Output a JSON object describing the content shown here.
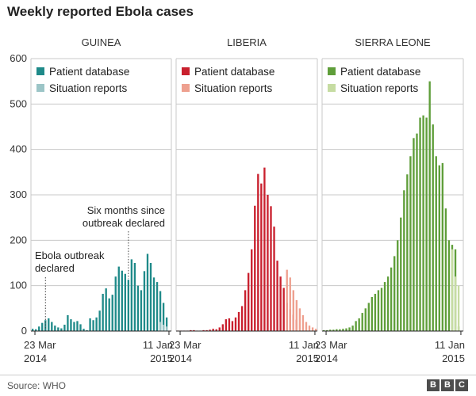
{
  "title": "Weekly reported Ebola cases",
  "source": "Source: WHO",
  "logo": [
    "B",
    "B",
    "C"
  ],
  "colors": {
    "guinea_db": "#1f8a89",
    "guinea_sr": "#9cc5c7",
    "liberia_db": "#c9202e",
    "liberia_sr": "#eea08f",
    "sierra_db": "#5f9e3a",
    "sierra_sr": "#c6dca2",
    "grid": "#c8c8c8",
    "axis": "#222222"
  },
  "chart_data": [
    {
      "type": "bar",
      "title": "GUINEA",
      "y_ticks": [
        0,
        100,
        200,
        300,
        400,
        500,
        600
      ],
      "ylim": [
        0,
        600
      ],
      "x_tick_labels": [
        {
          "week": 1,
          "label": "23 Mar",
          "sub": "2014"
        },
        {
          "week": 43,
          "label": "11 Jan",
          "sub": "2015"
        }
      ],
      "legend": [
        {
          "name": "Patient database",
          "color": "#1f8a89"
        },
        {
          "name": "Situation reports",
          "color": "#9cc5c7"
        }
      ],
      "annotations": [
        {
          "week": 4,
          "value": 100,
          "lines": [
            "Ebola outbreak",
            "declared"
          ]
        },
        {
          "week": 30,
          "value": 240,
          "lines": [
            "Six months since",
            "outbreak declared"
          ]
        }
      ],
      "series": [
        {
          "name": "Patient database",
          "start_week": 0,
          "values": [
            5,
            4,
            10,
            18,
            24,
            28,
            20,
            12,
            8,
            6,
            14,
            35,
            26,
            20,
            22,
            15,
            5,
            2,
            28,
            24,
            30,
            45,
            82,
            94,
            72,
            80,
            120,
            142,
            133,
            126,
            113,
            158,
            150,
            100,
            90,
            132,
            170,
            150,
            118,
            108,
            88,
            62,
            30
          ]
        },
        {
          "name": "Situation reports",
          "start_week": 40,
          "values": [
            20,
            14,
            10
          ]
        }
      ]
    },
    {
      "type": "bar",
      "title": "LIBERIA",
      "ylim": [
        0,
        600
      ],
      "x_tick_labels": [
        {
          "week": 1,
          "label": "23 Mar",
          "sub": "2014"
        },
        {
          "week": 43,
          "label": "11 Jan",
          "sub": "2015"
        }
      ],
      "legend": [
        {
          "name": "Patient database",
          "color": "#c9202e"
        },
        {
          "name": "Situation reports",
          "color": "#eea08f"
        }
      ],
      "series": [
        {
          "name": "Patient database",
          "start_week": 0,
          "values": [
            1,
            1,
            1,
            1,
            2,
            2,
            1,
            1,
            2,
            2,
            3,
            5,
            4,
            8,
            15,
            26,
            28,
            22,
            30,
            42,
            55,
            90,
            128,
            180,
            276,
            346,
            325,
            360,
            300,
            275,
            230,
            155,
            120,
            95,
            62,
            48,
            36,
            25
          ]
        },
        {
          "name": "Situation reports",
          "start_week": 34,
          "values": [
            135,
            118,
            90,
            68,
            50,
            35,
            20,
            12,
            8,
            5
          ]
        }
      ]
    },
    {
      "type": "bar",
      "title": "SIERRA LEONE",
      "ylim": [
        0,
        600
      ],
      "x_tick_labels": [
        {
          "week": 1,
          "label": "23 Mar",
          "sub": "2014"
        },
        {
          "week": 43,
          "label": "11 Jan",
          "sub": "2015"
        }
      ],
      "legend": [
        {
          "name": "Patient database",
          "color": "#5f9e3a"
        },
        {
          "name": "Situation reports",
          "color": "#c6dca2"
        }
      ],
      "series": [
        {
          "name": "Patient database",
          "start_week": 0,
          "values": [
            2,
            2,
            3,
            3,
            4,
            4,
            5,
            6,
            8,
            12,
            22,
            28,
            40,
            50,
            62,
            75,
            82,
            90,
            95,
            108,
            120,
            140,
            165,
            200,
            250,
            310,
            345,
            385,
            425,
            435,
            470,
            475,
            470,
            550,
            455,
            385,
            365,
            370,
            270,
            200,
            190,
            180,
            10
          ]
        },
        {
          "name": "Situation reports",
          "start_week": 40,
          "values": [
            180,
            120,
            100
          ]
        }
      ]
    }
  ]
}
